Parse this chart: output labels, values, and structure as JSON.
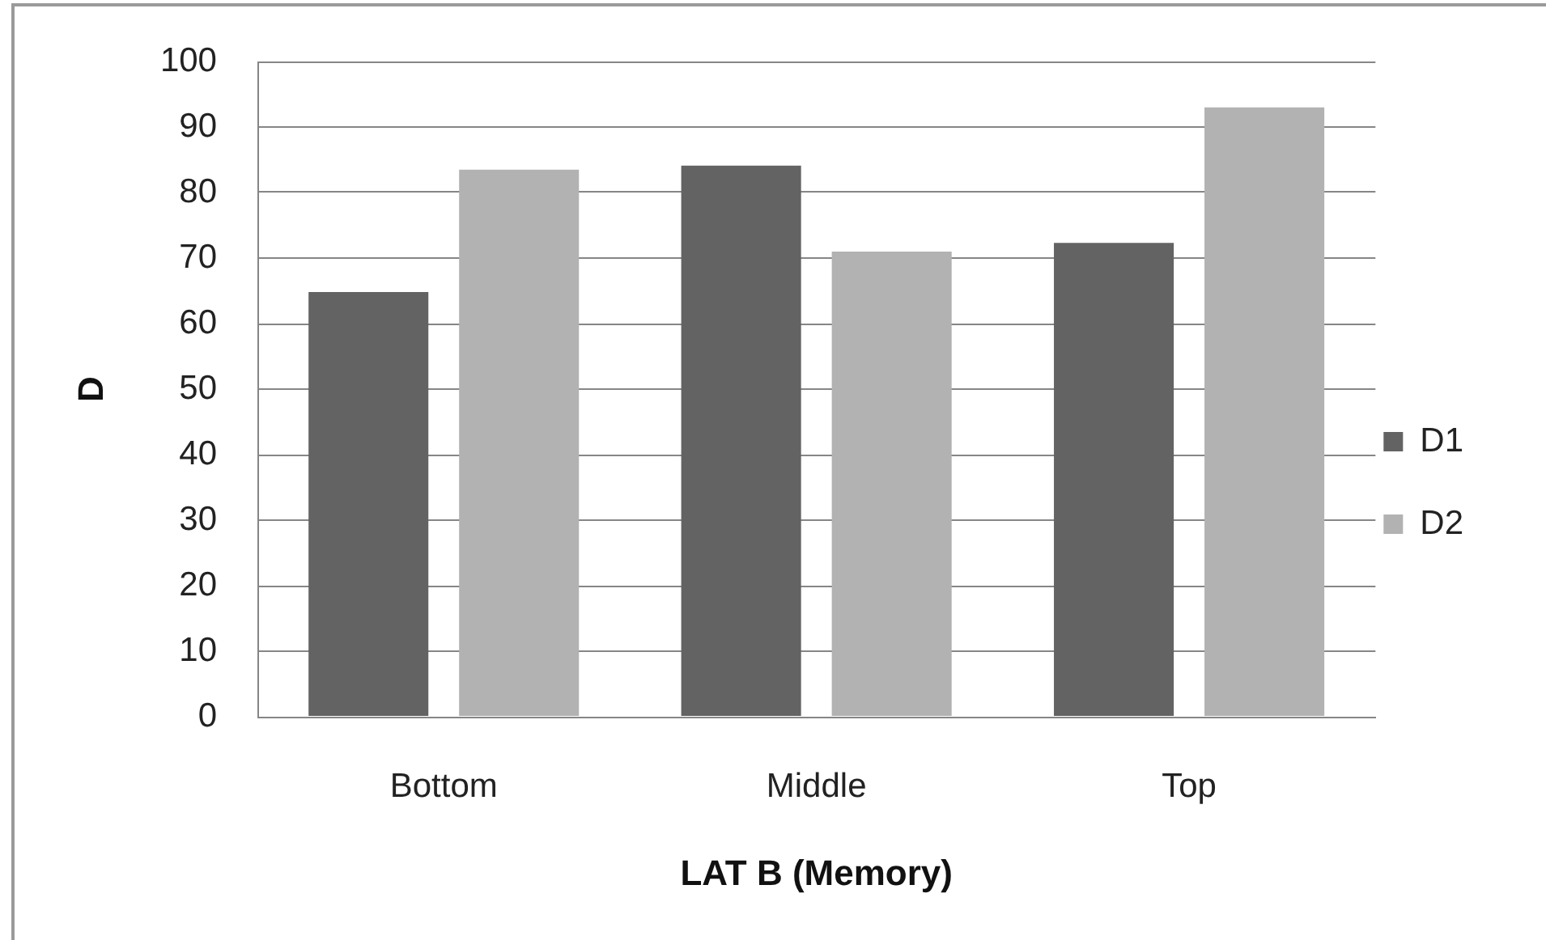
{
  "chart_data": {
    "type": "bar",
    "xlabel": "LAT B (Memory)",
    "ylabel": "D",
    "categories": [
      "Bottom",
      "Middle",
      "Top"
    ],
    "series": [
      {
        "name": "D1",
        "color": "#636363",
        "values": [
          64.8,
          84.1,
          72.3
        ]
      },
      {
        "name": "D2",
        "color": "#b2b2b2",
        "values": [
          83.5,
          71.0,
          93.0
        ]
      }
    ],
    "ylim": [
      0,
      100
    ],
    "yticks": [
      0,
      10,
      20,
      30,
      40,
      50,
      60,
      70,
      80,
      90,
      100
    ],
    "grid": "y",
    "legend": "right"
  }
}
